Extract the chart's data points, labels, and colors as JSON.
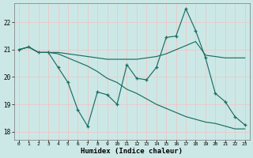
{
  "background_color": "#cce8e6",
  "grid_color": "#b8d8d4",
  "line_color": "#1a6e64",
  "xlabel": "Humidex (Indice chaleur)",
  "ylim": [
    17.7,
    22.7
  ],
  "xlim": [
    -0.5,
    23.5
  ],
  "yticks": [
    18,
    19,
    20,
    21,
    22
  ],
  "xticks": [
    0,
    1,
    2,
    3,
    4,
    5,
    6,
    7,
    8,
    9,
    10,
    11,
    12,
    13,
    14,
    15,
    16,
    17,
    18,
    19,
    20,
    21,
    22,
    23
  ],
  "line1_x": [
    0,
    1,
    2,
    3,
    4,
    5,
    6,
    7,
    8,
    9,
    10,
    11,
    12,
    13,
    14,
    15,
    16,
    17,
    18,
    19,
    20,
    21,
    22,
    23
  ],
  "line1_y": [
    21.0,
    21.1,
    20.9,
    20.9,
    20.35,
    19.8,
    18.8,
    18.2,
    19.45,
    19.35,
    19.0,
    20.45,
    19.95,
    19.9,
    20.35,
    21.45,
    21.5,
    22.5,
    21.7,
    20.7,
    19.4,
    19.1,
    18.55,
    18.25
  ],
  "line2_x": [
    0,
    1,
    2,
    3,
    4,
    5,
    6,
    7,
    8,
    9,
    10,
    11,
    12,
    13,
    14,
    15,
    16,
    17,
    18,
    19,
    20,
    21,
    22,
    23
  ],
  "line2_y": [
    21.0,
    21.1,
    20.9,
    20.9,
    20.9,
    20.85,
    20.8,
    20.75,
    20.7,
    20.65,
    20.65,
    20.65,
    20.65,
    20.7,
    20.75,
    20.85,
    21.0,
    21.15,
    21.3,
    20.8,
    20.75,
    20.7,
    20.7,
    20.7
  ],
  "line3_x": [
    0,
    1,
    2,
    3,
    4,
    5,
    6,
    7,
    8,
    9,
    10,
    11,
    12,
    13,
    14,
    15,
    16,
    17,
    18,
    19,
    20,
    21,
    22,
    23
  ],
  "line3_y": [
    21.0,
    21.1,
    20.9,
    20.9,
    20.85,
    20.7,
    20.55,
    20.4,
    20.2,
    19.95,
    19.8,
    19.55,
    19.4,
    19.2,
    19.0,
    18.85,
    18.7,
    18.55,
    18.45,
    18.35,
    18.3,
    18.2,
    18.1,
    18.1
  ]
}
